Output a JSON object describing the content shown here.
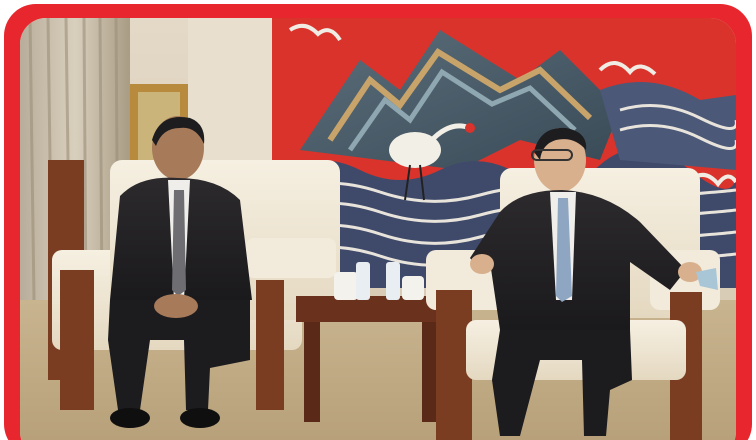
{
  "photo": {
    "subject": "",
    "border_color": "#e8262d",
    "mural_background": "#d9332b"
  }
}
